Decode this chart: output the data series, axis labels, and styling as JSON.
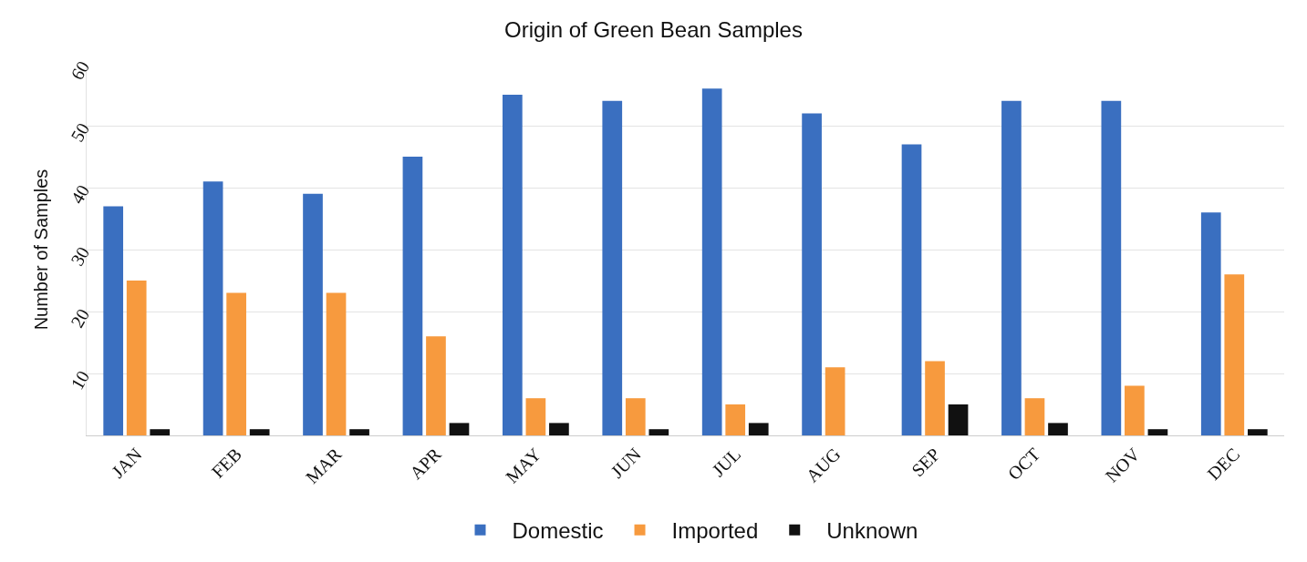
{
  "chart_data": {
    "type": "bar",
    "title": "Origin of Green Bean Samples",
    "ylabel": "Number of Samples",
    "categories": [
      "JAN",
      "FEB",
      "MAR",
      "APR",
      "MAY",
      "JUN",
      "JUL",
      "AUG",
      "SEP",
      "OCT",
      "NOV",
      "DEC"
    ],
    "series": [
      {
        "name": "Domestic",
        "color": "#3a6fc0",
        "values": [
          37,
          41,
          39,
          45,
          55,
          54,
          56,
          52,
          47,
          54,
          54,
          36
        ]
      },
      {
        "name": "Imported",
        "color": "#f79a3e",
        "values": [
          25,
          23,
          23,
          16,
          6,
          6,
          5,
          11,
          12,
          6,
          8,
          26
        ]
      },
      {
        "name": "Unknown",
        "color": "#111111",
        "values": [
          1,
          1,
          1,
          2,
          2,
          1,
          2,
          0,
          5,
          2,
          1,
          1
        ]
      }
    ],
    "ylim": [
      0,
      60
    ],
    "yticks": [
      {
        "value": 0,
        "label": null
      },
      10,
      20,
      30,
      40,
      50,
      60
    ],
    "grid": "y",
    "legend": "bottom"
  }
}
